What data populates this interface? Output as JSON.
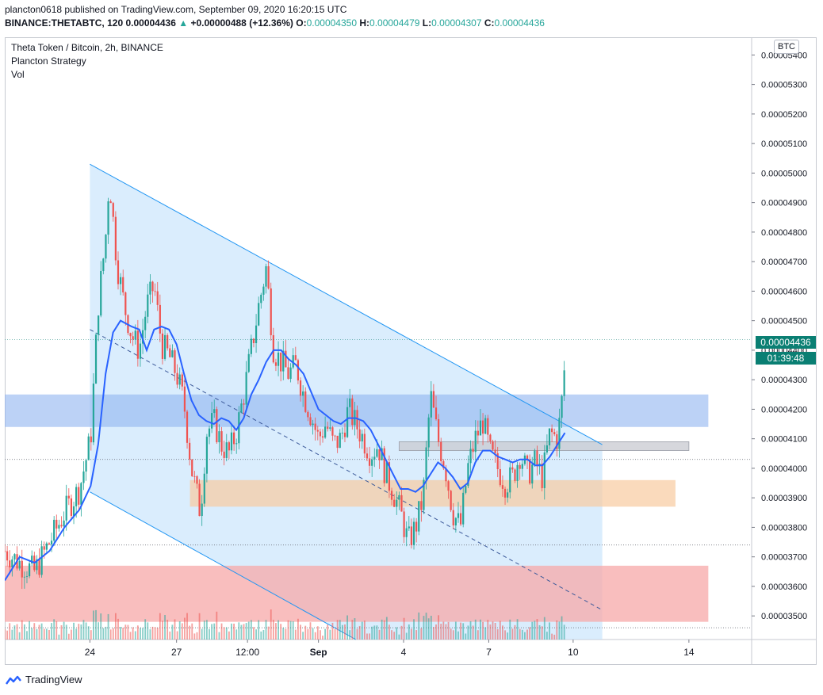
{
  "header": {
    "publisher": "plancton0618 published on TradingView.com, September 09, 2020 16:20:15 UTC",
    "symbol_full": "BINANCE:THETABTC, 120",
    "last": "0.00004436",
    "change": "+0.00000488 (+12.36%)",
    "o_label": "O:",
    "o_value": "0.00004350",
    "h_label": "H:",
    "h_value": "0.00004479",
    "l_label": "L:",
    "l_value": "0.00004307",
    "c_label": "C:",
    "c_value": "0.00004436"
  },
  "legend": {
    "symbol": "Theta Token / Bitcoin, 2h, BINANCE",
    "strategy": "Plancton Strategy",
    "vol": "Vol"
  },
  "badges": {
    "currency": "BTC",
    "price": "0.00004436",
    "timer": "01:39:48"
  },
  "footer": {
    "brand": "TradingView"
  },
  "colors": {
    "up": "#26a69a",
    "down": "#ef5350",
    "ma": "#2962ff",
    "channel_fill": "#bbdefb",
    "channel_line": "#2196f3",
    "blue_zone": "#90b4f0",
    "orange_zone": "#f8cba0",
    "red_zone": "#f7a8a8",
    "grey_zone": "#c8cad0"
  },
  "chart_data": {
    "type": "candlestick",
    "title": "Theta Token / Bitcoin, 2h, BINANCE",
    "y_axis": {
      "ylim": [
        3.42e-05,
        5.46e-05
      ],
      "ticks": [
        "0.00005400",
        "0.00005300",
        "0.00005200",
        "0.00005100",
        "0.00005000",
        "0.00004900",
        "0.00004800",
        "0.00004700",
        "0.00004600",
        "0.00004500",
        "0.00004400",
        "0.00004300",
        "0.00004200",
        "0.00004100",
        "0.00004000",
        "0.00003900",
        "0.00003800",
        "0.00003700",
        "0.00003600",
        "0.00003500"
      ],
      "tick_values": [
        5.4e-05,
        5.3e-05,
        5.2e-05,
        5.1e-05,
        5e-05,
        4.9e-05,
        4.8e-05,
        4.7e-05,
        4.6e-05,
        4.5e-05,
        4.4e-05,
        4.3e-05,
        4.2e-05,
        4.1e-05,
        4e-05,
        3.9e-05,
        3.8e-05,
        3.7e-05,
        3.6e-05,
        3.5e-05
      ]
    },
    "x_axis": {
      "xlim": [
        0,
        1000
      ],
      "tick_labels": [
        "24",
        "27",
        "12:00",
        "Sep",
        "4",
        "7",
        "10",
        "14"
      ],
      "tick_positions": [
        114,
        230,
        325,
        420,
        534,
        648,
        761,
        916
      ]
    },
    "price_path": [
      [
        0,
        3.72e-05
      ],
      [
        20,
        3.68e-05
      ],
      [
        40,
        3.65e-05
      ],
      [
        60,
        3.75e-05
      ],
      [
        80,
        3.85e-05
      ],
      [
        100,
        3.93e-05
      ],
      [
        115,
        4.1e-05
      ],
      [
        125,
        4.55e-05
      ],
      [
        135,
        4.78e-05
      ],
      [
        140,
        4.99e-05
      ],
      [
        150,
        4.7e-05
      ],
      [
        160,
        4.55e-05
      ],
      [
        170,
        4.45e-05
      ],
      [
        180,
        4.4e-05
      ],
      [
        190,
        4.55e-05
      ],
      [
        200,
        4.62e-05
      ],
      [
        210,
        4.42e-05
      ],
      [
        220,
        4.38e-05
      ],
      [
        230,
        4.32e-05
      ],
      [
        240,
        4.22e-05
      ],
      [
        250,
        4e-05
      ],
      [
        262,
        3.85e-05
      ],
      [
        270,
        4.12e-05
      ],
      [
        280,
        4.16e-05
      ],
      [
        290,
        4.08e-05
      ],
      [
        300,
        4.05e-05
      ],
      [
        310,
        4.12e-05
      ],
      [
        320,
        4.25e-05
      ],
      [
        330,
        4.4e-05
      ],
      [
        340,
        4.55e-05
      ],
      [
        350,
        4.68e-05
      ],
      [
        360,
        4.4e-05
      ],
      [
        370,
        4.36e-05
      ],
      [
        380,
        4.32e-05
      ],
      [
        390,
        4.35e-05
      ],
      [
        400,
        4.25e-05
      ],
      [
        410,
        4.18e-05
      ],
      [
        420,
        4.1e-05
      ],
      [
        430,
        4.15e-05
      ],
      [
        440,
        4.08e-05
      ],
      [
        450,
        4.1e-05
      ],
      [
        460,
        4.2e-05
      ],
      [
        470,
        4.15e-05
      ],
      [
        480,
        4.1e-05
      ],
      [
        490,
        4.05e-05
      ],
      [
        500,
        4.08e-05
      ],
      [
        510,
        3.98e-05
      ],
      [
        520,
        3.92e-05
      ],
      [
        530,
        3.85e-05
      ],
      [
        540,
        3.75e-05
      ],
      [
        550,
        3.8e-05
      ],
      [
        560,
        3.9e-05
      ],
      [
        570,
        4.25e-05
      ],
      [
        580,
        4.1e-05
      ],
      [
        590,
        4e-05
      ],
      [
        600,
        3.85e-05
      ],
      [
        610,
        3.8e-05
      ],
      [
        620,
        4e-05
      ],
      [
        630,
        4.1e-05
      ],
      [
        640,
        4.16e-05
      ],
      [
        650,
        4.05e-05
      ],
      [
        660,
        4e-05
      ],
      [
        670,
        3.95e-05
      ],
      [
        680,
        3.97e-05
      ],
      [
        690,
        4.05e-05
      ],
      [
        700,
        3.98e-05
      ],
      [
        710,
        4.02e-05
      ],
      [
        720,
        3.97e-05
      ],
      [
        730,
        4.12e-05
      ],
      [
        740,
        4.1e-05
      ],
      [
        745,
        4.2e-05
      ],
      [
        750,
        4.36e-05
      ]
    ],
    "ma_path": [
      [
        0,
        3.62e-05
      ],
      [
        20,
        3.7e-05
      ],
      [
        40,
        3.68e-05
      ],
      [
        60,
        3.72e-05
      ],
      [
        80,
        3.8e-05
      ],
      [
        100,
        3.86e-05
      ],
      [
        115,
        3.94e-05
      ],
      [
        125,
        4.08e-05
      ],
      [
        135,
        4.32e-05
      ],
      [
        145,
        4.46e-05
      ],
      [
        155,
        4.5e-05
      ],
      [
        170,
        4.48e-05
      ],
      [
        180,
        4.47e-05
      ],
      [
        190,
        4.4e-05
      ],
      [
        200,
        4.47e-05
      ],
      [
        210,
        4.48e-05
      ],
      [
        220,
        4.47e-05
      ],
      [
        230,
        4.42e-05
      ],
      [
        240,
        4.32e-05
      ],
      [
        250,
        4.23e-05
      ],
      [
        260,
        4.18e-05
      ],
      [
        270,
        4.16e-05
      ],
      [
        280,
        4.15e-05
      ],
      [
        290,
        4.17e-05
      ],
      [
        300,
        4.16e-05
      ],
      [
        310,
        4.13e-05
      ],
      [
        320,
        4.17e-05
      ],
      [
        330,
        4.25e-05
      ],
      [
        340,
        4.3e-05
      ],
      [
        350,
        4.36e-05
      ],
      [
        360,
        4.4e-05
      ],
      [
        370,
        4.4e-05
      ],
      [
        380,
        4.37e-05
      ],
      [
        390,
        4.35e-05
      ],
      [
        400,
        4.32e-05
      ],
      [
        410,
        4.26e-05
      ],
      [
        420,
        4.2e-05
      ],
      [
        430,
        4.18e-05
      ],
      [
        440,
        4.16e-05
      ],
      [
        450,
        4.15e-05
      ],
      [
        460,
        4.17e-05
      ],
      [
        470,
        4.17e-05
      ],
      [
        480,
        4.16e-05
      ],
      [
        490,
        4.13e-05
      ],
      [
        500,
        4.08e-05
      ],
      [
        510,
        4.03e-05
      ],
      [
        520,
        3.98e-05
      ],
      [
        530,
        3.93e-05
      ],
      [
        540,
        3.93e-05
      ],
      [
        550,
        3.92e-05
      ],
      [
        560,
        3.94e-05
      ],
      [
        570,
        3.98e-05
      ],
      [
        580,
        4.02e-05
      ],
      [
        590,
        4e-05
      ],
      [
        600,
        3.97e-05
      ],
      [
        610,
        3.93e-05
      ],
      [
        620,
        3.95e-05
      ],
      [
        630,
        4.02e-05
      ],
      [
        640,
        4.06e-05
      ],
      [
        650,
        4.06e-05
      ],
      [
        660,
        4.04e-05
      ],
      [
        670,
        4.03e-05
      ],
      [
        680,
        4.02e-05
      ],
      [
        690,
        4.03e-05
      ],
      [
        700,
        4.03e-05
      ],
      [
        710,
        4.01e-05
      ],
      [
        720,
        4.01e-05
      ],
      [
        730,
        4.04e-05
      ],
      [
        740,
        4.08e-05
      ],
      [
        750,
        4.12e-05
      ]
    ],
    "channel": {
      "upper_start": [
        114,
        5.03e-05
      ],
      "upper_end": [
        800,
        4.08e-05
      ],
      "lower_start": [
        114,
        3.92e-05
      ],
      "lower_end": [
        470,
        3.42e-05
      ],
      "mid_start": [
        114,
        4.47e-05
      ],
      "mid_end": [
        800,
        3.52e-05
      ],
      "right_x": 800
    },
    "zones": [
      {
        "name": "blue",
        "x1": 0,
        "x2": 942,
        "y1": 4.25e-05,
        "y2": 4.14e-05
      },
      {
        "name": "orange",
        "x1": 248,
        "x2": 898,
        "y1": 3.96e-05,
        "y2": 3.87e-05
      },
      {
        "name": "grey",
        "x1": 528,
        "x2": 916,
        "y1": 4.09e-05,
        "y2": 4.06e-05
      },
      {
        "name": "red",
        "x1": 0,
        "x2": 942,
        "y1": 3.67e-05,
        "y2": 3.48e-05
      }
    ],
    "dotted_levels": [
      4.03e-05,
      3.74e-05,
      3.46e-05
    ]
  }
}
